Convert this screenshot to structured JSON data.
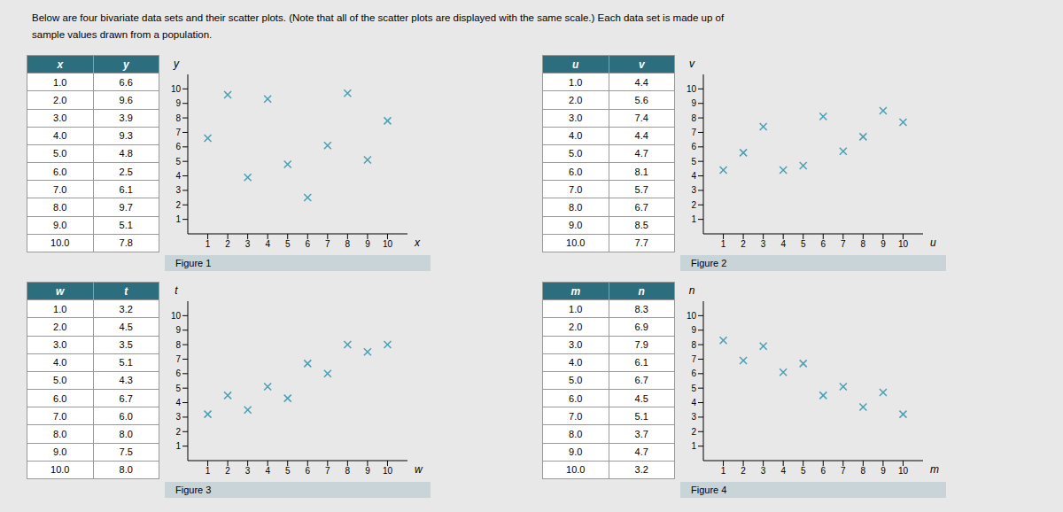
{
  "title": "Below are four bivariate data sets and their scatter plots. (Note that all of the scatter plots are displayed with the same scale.) Each data set is made up of",
  "subtitle": "sample values drawn from a population.",
  "chart_data": [
    {
      "type": "scatter",
      "title": "Figure 1",
      "xlabel": "x",
      "ylabel": "y",
      "x": [
        1.0,
        2.0,
        3.0,
        4.0,
        5.0,
        6.0,
        7.0,
        8.0,
        9.0,
        10.0
      ],
      "values": [
        6.6,
        9.6,
        3.9,
        9.3,
        4.8,
        2.5,
        6.1,
        9.7,
        5.1,
        7.8
      ],
      "color": "#4a9fb5",
      "marker": "x",
      "xlim": [
        0,
        11
      ],
      "ylim": [
        0,
        11
      ],
      "xticks": [
        1,
        2,
        3,
        4,
        5,
        6,
        7,
        8,
        9,
        10
      ],
      "yticks": [
        1,
        2,
        3,
        4,
        5,
        6,
        7,
        8,
        9,
        10
      ],
      "grid": false
    },
    {
      "type": "scatter",
      "title": "Figure 2",
      "xlabel": "u",
      "ylabel": "v",
      "x": [
        1.0,
        2.0,
        3.0,
        4.0,
        5.0,
        6.0,
        7.0,
        8.0,
        9.0,
        10.0
      ],
      "values": [
        4.4,
        5.6,
        7.4,
        4.4,
        4.7,
        8.1,
        5.7,
        6.7,
        8.5,
        7.7
      ],
      "color": "#4a9fb5",
      "marker": "x",
      "xlim": [
        0,
        11
      ],
      "ylim": [
        0,
        11
      ],
      "xticks": [
        1,
        2,
        3,
        4,
        5,
        6,
        7,
        8,
        9,
        10
      ],
      "yticks": [
        1,
        2,
        3,
        4,
        5,
        6,
        7,
        8,
        9,
        10
      ],
      "grid": false
    },
    {
      "type": "scatter",
      "title": "Figure 3",
      "xlabel": "w",
      "ylabel": "t",
      "x": [
        1.0,
        2.0,
        3.0,
        4.0,
        5.0,
        6.0,
        7.0,
        8.0,
        9.0,
        10.0
      ],
      "values": [
        3.2,
        4.5,
        3.5,
        5.1,
        4.3,
        6.7,
        6.0,
        8.0,
        7.5,
        8.0
      ],
      "color": "#4a9fb5",
      "marker": "x",
      "xlim": [
        0,
        11
      ],
      "ylim": [
        0,
        11
      ],
      "xticks": [
        1,
        2,
        3,
        4,
        5,
        6,
        7,
        8,
        9,
        10
      ],
      "yticks": [
        1,
        2,
        3,
        4,
        5,
        6,
        7,
        8,
        9,
        10
      ],
      "grid": false
    },
    {
      "type": "scatter",
      "title": "Figure 4",
      "xlabel": "m",
      "ylabel": "n",
      "x": [
        1.0,
        2.0,
        3.0,
        4.0,
        5.0,
        6.0,
        7.0,
        8.0,
        9.0,
        10.0
      ],
      "values": [
        8.3,
        6.9,
        7.9,
        6.1,
        6.7,
        4.5,
        5.1,
        3.7,
        4.7,
        3.2
      ],
      "color": "#4a9fb5",
      "marker": "x",
      "xlim": [
        0,
        11
      ],
      "ylim": [
        0,
        11
      ],
      "xticks": [
        1,
        2,
        3,
        4,
        5,
        6,
        7,
        8,
        9,
        10
      ],
      "yticks": [
        1,
        2,
        3,
        4,
        5,
        6,
        7,
        8,
        9,
        10
      ],
      "grid": false
    }
  ]
}
